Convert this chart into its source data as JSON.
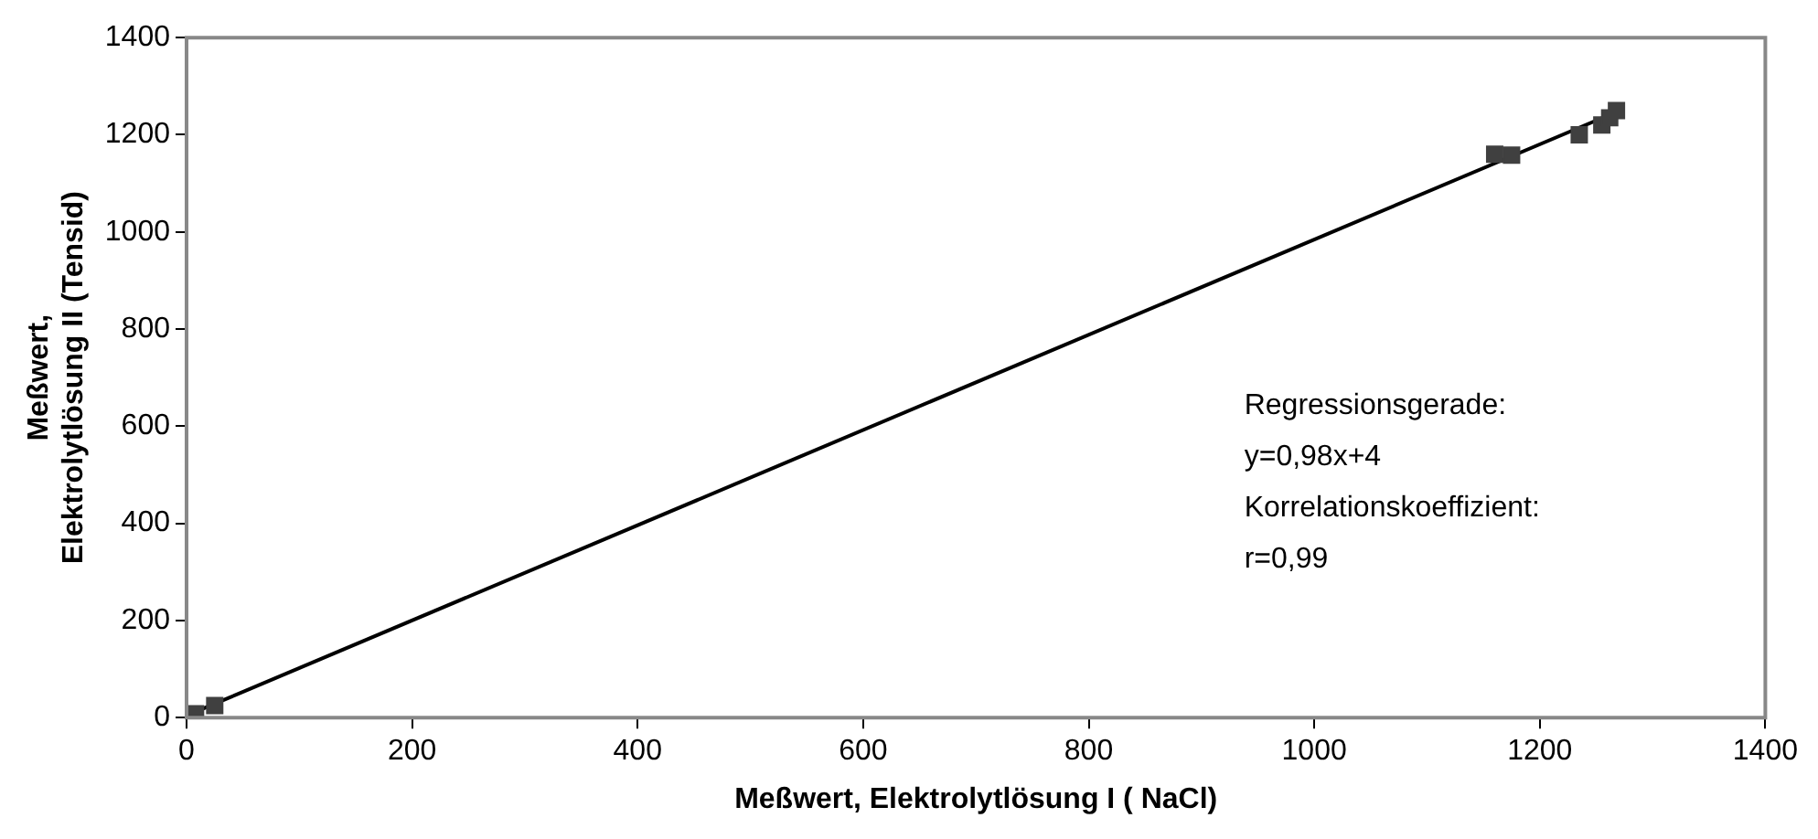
{
  "chart_data": {
    "type": "scatter",
    "xlabel": "Meßwert, Elektrolytlösung I ( NaCl)",
    "ylabel": "Meßwert, Elektrolytlösung II (Tensid)",
    "grid": false,
    "legend": false,
    "xlim": [
      0,
      1400
    ],
    "xticks": [
      0,
      200,
      400,
      600,
      800,
      1000,
      1200,
      1400
    ],
    "ylim": [
      0,
      1400
    ],
    "yticks": [
      0,
      200,
      400,
      600,
      800,
      1000,
      1200,
      1400
    ],
    "series": [
      {
        "color": "#404040",
        "marker": "square",
        "x": [
          8,
          25,
          1160,
          1175,
          1235,
          1255,
          1262,
          1268
        ],
        "values": [
          8,
          25,
          1160,
          1158,
          1200,
          1220,
          1235,
          1250
        ]
      },
      {
        "type": "line",
        "marker": "none",
        "color": "#000000",
        "x": [
          5,
          1268
        ],
        "values": [
          9,
          1247
        ]
      }
    ],
    "annotations": [
      "Regressionsgerade:",
      "y=0,98x+4",
      "Korrelationskoeffizient:",
      "r=0,99"
    ]
  }
}
